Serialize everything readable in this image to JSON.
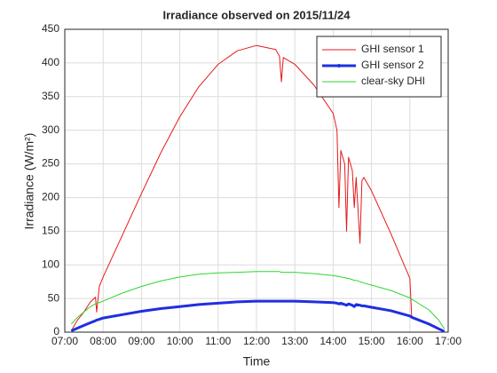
{
  "chart_data": {
    "type": "line",
    "title": "Irradiance observed on 2015/11/24",
    "x_label": "Time",
    "y_label": "Irradiance (W/m²)",
    "x": [
      7.17,
      7.33,
      7.5,
      7.67,
      7.8,
      7.83,
      7.9,
      8.0,
      8.5,
      9,
      9.5,
      10,
      10.5,
      11,
      11.5,
      12,
      12.5,
      12.6,
      12.65,
      12.7,
      13,
      13.5,
      14,
      14.1,
      14.15,
      14.2,
      14.3,
      14.35,
      14.4,
      14.5,
      14.55,
      14.6,
      14.7,
      14.75,
      14.8,
      15,
      15.5,
      16,
      16.05,
      16.5,
      16.75,
      16.9
    ],
    "series": [
      {
        "name": "GHI sensor 1",
        "color": "#e41a1c",
        "values": [
          2,
          18,
          30,
          45,
          52,
          30,
          68,
          82,
          144,
          206,
          266,
          320,
          365,
          398,
          418,
          426,
          420,
          410,
          372,
          408,
          398,
          367,
          325,
          300,
          185,
          270,
          250,
          150,
          260,
          240,
          185,
          230,
          132,
          225,
          230,
          210,
          147,
          80,
          20,
          null,
          null,
          null
        ]
      },
      {
        "name": "GHI sensor 2",
        "color": "#1f2fe0",
        "values": [
          2,
          6,
          10,
          14,
          17,
          18,
          19,
          21,
          26,
          31,
          35,
          38,
          41,
          43,
          45,
          46,
          46,
          46,
          46,
          46,
          46,
          45,
          44,
          43,
          42,
          43,
          41,
          40,
          42,
          40,
          38,
          41,
          40,
          39,
          39,
          37,
          32,
          24,
          22,
          12,
          5,
          1
        ]
      },
      {
        "name": "clear-sky DHI",
        "color": "#2fd62f",
        "values": [
          12,
          22,
          30,
          38,
          42,
          43,
          44,
          46,
          58,
          68,
          76,
          82,
          86,
          88,
          89,
          90,
          90,
          90,
          89,
          89,
          89,
          87,
          84,
          83,
          83,
          82,
          81,
          80,
          80,
          78,
          77,
          77,
          75,
          74,
          73,
          70,
          62,
          51,
          49,
          33,
          18,
          5
        ]
      }
    ],
    "xlim": [
      7,
      17
    ],
    "xticks": [
      {
        "value": 7,
        "label": "07:00"
      },
      {
        "value": 8,
        "label": "08:00"
      },
      {
        "value": 9,
        "label": "09:00"
      },
      {
        "value": 10,
        "label": "10:00"
      },
      {
        "value": 11,
        "label": "11:00"
      },
      {
        "value": 12,
        "label": "12:00"
      },
      {
        "value": 13,
        "label": "13:00"
      },
      {
        "value": 14,
        "label": "14:00"
      },
      {
        "value": 15,
        "label": "15:00"
      },
      {
        "value": 16,
        "label": "16:00"
      },
      {
        "value": 17,
        "label": "17:00"
      }
    ],
    "ylim": [
      0,
      450
    ],
    "yticks": [
      0,
      50,
      100,
      150,
      200,
      250,
      300,
      350,
      400,
      450
    ],
    "grid": true,
    "legend": "top-right"
  }
}
